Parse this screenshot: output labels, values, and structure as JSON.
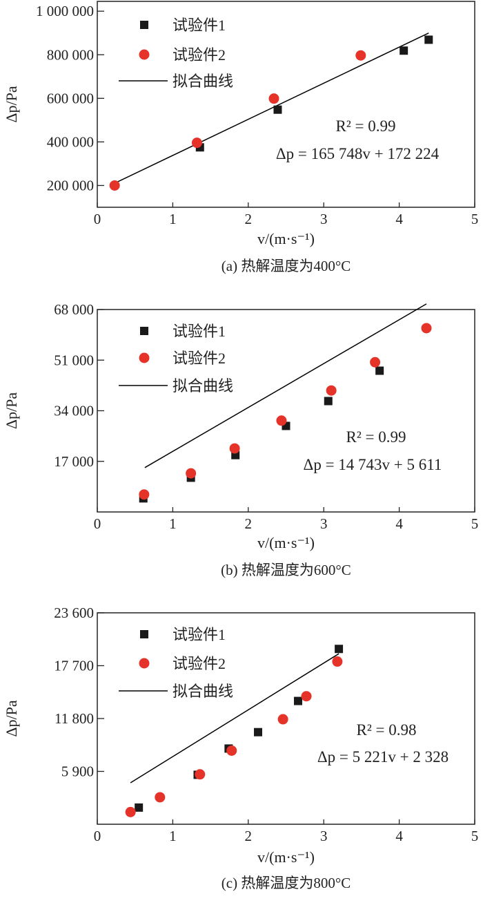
{
  "colors": {
    "series1": "#1a1a1a",
    "series2": "#e5332a",
    "fit": "#000000"
  },
  "chart_data": [
    {
      "type": "scatter",
      "caption": "(a) 热解温度为400°C",
      "xlabel": "v/(m·s⁻¹)",
      "ylabel": "Δp/Pa",
      "xlim": [
        0,
        5
      ],
      "ylim": [
        100000,
        1045000
      ],
      "xticks": [
        0,
        1,
        2,
        3,
        4,
        5
      ],
      "xtick_labels": [
        "0",
        "1",
        "2",
        "3",
        "4",
        "5"
      ],
      "yticks": [
        200000,
        400000,
        600000,
        800000,
        1000000
      ],
      "ytick_labels": [
        "200 000",
        "400 000",
        "600 000",
        "800 000",
        "1 000 000"
      ],
      "legend": {
        "placement": "top-left",
        "entries": [
          "试验件1",
          "试验件2",
          "拟合曲线"
        ]
      },
      "series": [
        {
          "name": "试验件1",
          "marker": "square",
          "x": [
            1.36,
            2.39,
            4.06,
            4.39
          ],
          "y": [
            375000,
            548000,
            819000,
            869000
          ]
        },
        {
          "name": "试验件2",
          "marker": "circle",
          "x": [
            0.23,
            1.32,
            2.34,
            3.49
          ],
          "y": [
            200000,
            396000,
            599000,
            797000
          ]
        }
      ],
      "fit": {
        "name": "拟合曲线",
        "slope": 165748,
        "intercept": 172224,
        "x_range": [
          0.23,
          4.39
        ]
      },
      "r2_text": "R² = 0.99",
      "equation_text": "Δp = 165 748v + 172 224"
    },
    {
      "type": "scatter",
      "caption": "(b) 热解温度为600°C",
      "xlabel": "v/(m·s⁻¹)",
      "ylabel": "Δp/Pa",
      "xlim": [
        0,
        5
      ],
      "ylim": [
        0,
        68000
      ],
      "xticks": [
        0,
        1,
        2,
        3,
        4,
        5
      ],
      "xtick_labels": [
        "0",
        "1",
        "2",
        "3",
        "4",
        "5"
      ],
      "yticks": [
        17000,
        34000,
        51000,
        68000
      ],
      "ytick_labels": [
        "17 000",
        "34 000",
        "51 000",
        "68 000"
      ],
      "legend": {
        "placement": "top-left",
        "entries": [
          "试验件1",
          "试验件2",
          "拟合曲线"
        ]
      },
      "series": [
        {
          "name": "试验件1",
          "marker": "square",
          "x": [
            0.61,
            1.24,
            1.83,
            2.5,
            3.06,
            3.74
          ],
          "y": [
            4560,
            11500,
            19100,
            28900,
            37250,
            47450
          ]
        },
        {
          "name": "试验件2",
          "marker": "circle",
          "x": [
            0.62,
            1.24,
            1.82,
            2.44,
            3.1,
            3.68,
            4.36
          ],
          "y": [
            5870,
            12980,
            21330,
            30680,
            40800,
            50300,
            61740
          ]
        }
      ],
      "fit": {
        "name": "拟合曲线",
        "slope": 14743,
        "intercept": 5611,
        "x_range": [
          0.63,
          4.36
        ]
      },
      "r2_text": "R² = 0.99",
      "equation_text": "Δp = 14 743v + 5 611"
    },
    {
      "type": "scatter",
      "caption": "(c) 热解温度为800°C",
      "xlabel": "v/(m·s⁻¹)",
      "ylabel": "Δp/Pa",
      "xlim": [
        0,
        5
      ],
      "ylim": [
        0,
        23600
      ],
      "xticks": [
        0,
        1,
        2,
        3,
        4,
        5
      ],
      "xtick_labels": [
        "0",
        "1",
        "2",
        "3",
        "4",
        "5"
      ],
      "yticks": [
        5900,
        11800,
        17700,
        23600
      ],
      "ytick_labels": [
        "5 900",
        "11 800",
        "17 700",
        "23 600"
      ],
      "legend": {
        "placement": "top-left",
        "entries": [
          "试验件1",
          "试验件2",
          "拟合曲线"
        ]
      },
      "series": [
        {
          "name": "试验件1",
          "marker": "square",
          "x": [
            0.55,
            1.33,
            1.74,
            2.13,
            2.66,
            3.2
          ],
          "y": [
            1860,
            5520,
            8450,
            10280,
            13760,
            19570
          ]
        },
        {
          "name": "试验件2",
          "marker": "circle",
          "x": [
            0.44,
            0.83,
            1.36,
            1.78,
            2.46,
            2.77,
            3.18
          ],
          "y": [
            1360,
            3010,
            5570,
            8215,
            11720,
            14290,
            18160
          ]
        }
      ],
      "fit": {
        "name": "拟合曲线",
        "slope": 5221,
        "intercept": 2328,
        "x_range": [
          0.44,
          3.2
        ]
      },
      "r2_text": "R² = 0.98",
      "equation_text": "Δp = 5 221v + 2 328"
    }
  ]
}
